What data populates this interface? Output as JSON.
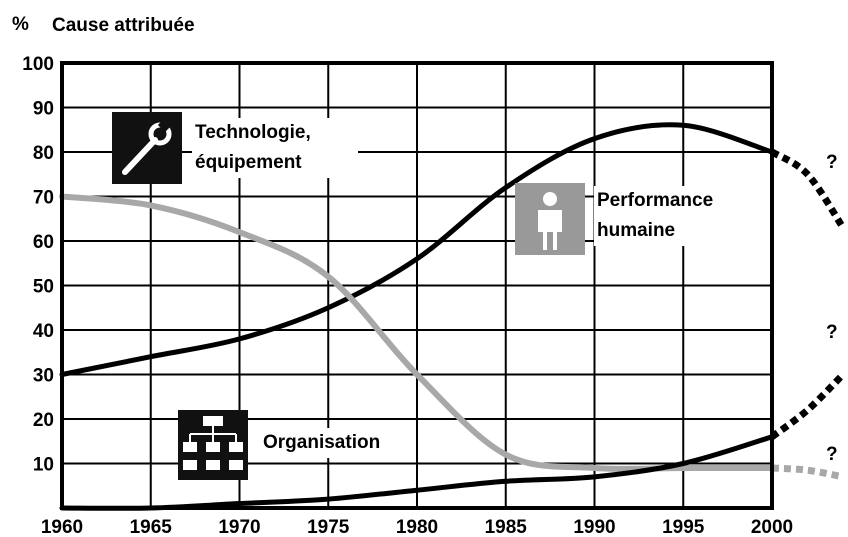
{
  "chart_data": {
    "type": "line",
    "y_unit": "%",
    "ylabel": "Cause attribuée",
    "x": [
      1960,
      1965,
      1970,
      1975,
      1980,
      1985,
      1990,
      1995,
      2000
    ],
    "xlim": [
      1960,
      2000
    ],
    "xticks": [
      1960,
      1965,
      1970,
      1975,
      1980,
      1985,
      1990,
      1995,
      2000
    ],
    "ylim": [
      0,
      100
    ],
    "yticks": [
      10,
      20,
      30,
      40,
      50,
      60,
      70,
      80,
      90,
      100
    ],
    "grid": true,
    "series": [
      {
        "name": "Performance humaine",
        "color": "#000000",
        "values": [
          30,
          34,
          38,
          45,
          56,
          72,
          83,
          86,
          80
        ],
        "projection": {
          "x": [
            2002,
            2004
          ],
          "values": [
            75,
            63
          ]
        },
        "projection_label": "?"
      },
      {
        "name": "Technologie, équipement",
        "color": "#a8a8a8",
        "values": [
          70,
          68,
          62,
          52,
          30,
          12,
          9,
          9,
          9
        ],
        "projection": {
          "x": [
            2002,
            2004
          ],
          "values": [
            8.5,
            7
          ]
        },
        "projection_label": "?"
      },
      {
        "name": "Organisation",
        "color": "#000000",
        "values": [
          0,
          0,
          1,
          2,
          4,
          6,
          7,
          10,
          16
        ],
        "projection": {
          "x": [
            2002,
            2004
          ],
          "values": [
            22,
            30
          ]
        },
        "projection_label": "?"
      }
    ]
  }
}
